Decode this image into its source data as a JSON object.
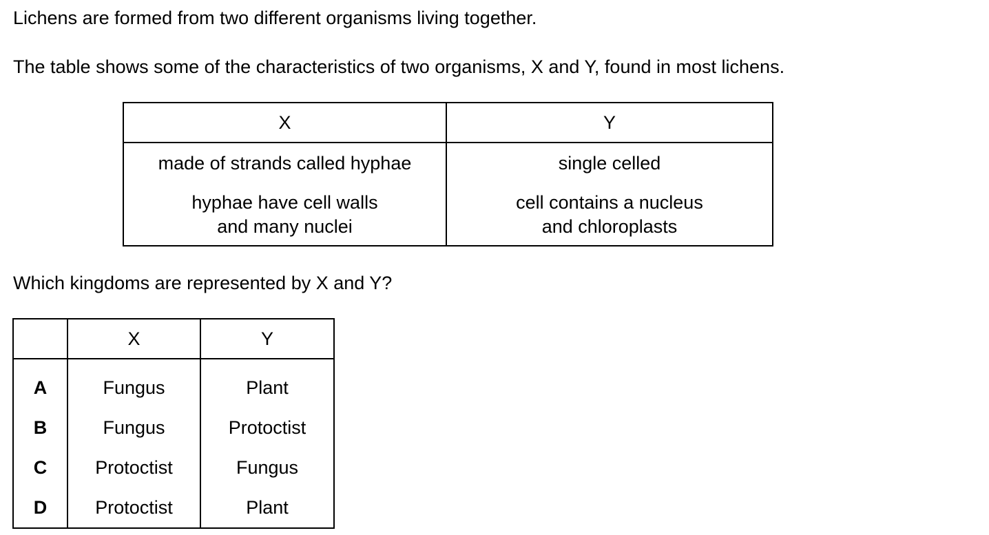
{
  "intro": {
    "line1": "Lichens are formed from two different organisms living together.",
    "line2": "The table shows some of the characteristics of two organisms, X and Y, found in most lichens."
  },
  "characteristics_table": {
    "headers": [
      "X",
      "Y"
    ],
    "x_items": [
      "made of strands called hyphae",
      "hyphae have cell walls",
      "and many nuclei"
    ],
    "y_items": [
      "single celled",
      "cell contains a nucleus",
      "and chloroplasts"
    ]
  },
  "question": "Which kingdoms are represented by X and Y?",
  "options_table": {
    "headers": [
      "",
      "X",
      "Y"
    ],
    "rows": [
      {
        "letter": "A",
        "x": "Fungus",
        "y": "Plant"
      },
      {
        "letter": "B",
        "x": "Fungus",
        "y": "Protoctist"
      },
      {
        "letter": "C",
        "x": "Protoctist",
        "y": "Fungus"
      },
      {
        "letter": "D",
        "x": "Protoctist",
        "y": "Plant"
      }
    ]
  }
}
